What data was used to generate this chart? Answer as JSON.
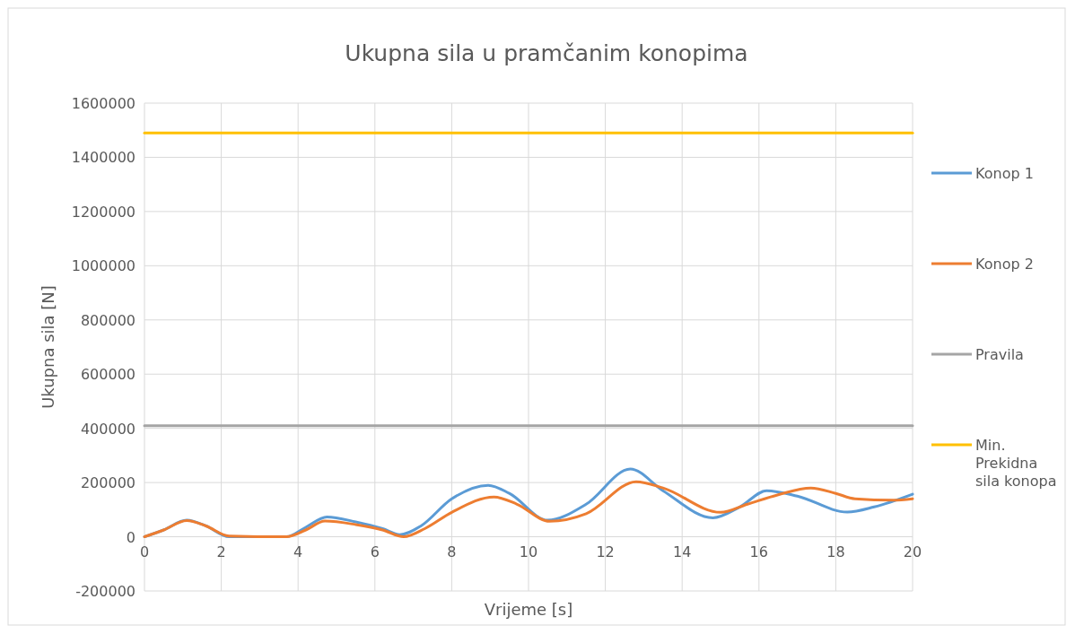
{
  "chart_data": {
    "type": "line",
    "title": "Ukupna sila u pramčanim konopima",
    "xlabel": "Vrijeme [s]",
    "ylabel": "Ukupna sila [N]",
    "xlim": [
      0,
      20
    ],
    "xticks": [
      0,
      2,
      4,
      6,
      8,
      10,
      12,
      14,
      16,
      18,
      20
    ],
    "ylim": [
      -200000,
      1600000
    ],
    "yticks": [
      -200000,
      0,
      200000,
      400000,
      600000,
      800000,
      1000000,
      1200000,
      1400000,
      1600000
    ],
    "grid": true,
    "legend": "right",
    "marker": "none",
    "line_style": "solid",
    "series": [
      {
        "name": "Konop 1",
        "color": "#5b9bd5",
        "x": [
          0,
          0.5,
          1.1,
          1.6,
          2.2,
          3.7,
          4.2,
          4.75,
          5.5,
          6.2,
          6.65,
          7.2,
          8,
          8.95,
          9.5,
          10.5,
          11.5,
          12.65,
          13.5,
          14.8,
          15.5,
          16.2,
          17,
          18.3,
          19,
          20
        ],
        "values": [
          0,
          25000,
          61000,
          40000,
          0,
          0,
          35000,
          73000,
          55000,
          30000,
          8000,
          40000,
          140000,
          190000,
          160000,
          61000,
          120000,
          250000,
          170000,
          70000,
          110000,
          170000,
          150000,
          91000,
          110000,
          157000
        ]
      },
      {
        "name": "Konop 2",
        "color": "#ed7d31",
        "x": [
          0,
          0.5,
          1.1,
          1.6,
          2.2,
          3.7,
          4.2,
          4.7,
          5.5,
          6.2,
          6.75,
          7.3,
          8,
          9.1,
          9.7,
          10.55,
          11.5,
          12.8,
          13.5,
          15,
          15.7,
          16.5,
          17.35,
          18,
          18.5,
          19.5,
          20
        ],
        "values": [
          0,
          25000,
          60000,
          40000,
          3000,
          0,
          25000,
          58000,
          45000,
          25000,
          0,
          30000,
          90000,
          147000,
          120000,
          57000,
          85000,
          203000,
          180000,
          90000,
          120000,
          155000,
          180000,
          160000,
          140000,
          135000,
          140000
        ]
      },
      {
        "name": "Pravila",
        "color": "#a5a5a5",
        "x": [
          0,
          20
        ],
        "values": [
          410000,
          410000
        ]
      },
      {
        "name": "Min. Prekidna sila konopa",
        "color": "#ffc000",
        "x": [
          0,
          20
        ],
        "values": [
          1490000,
          1490000
        ]
      }
    ]
  }
}
